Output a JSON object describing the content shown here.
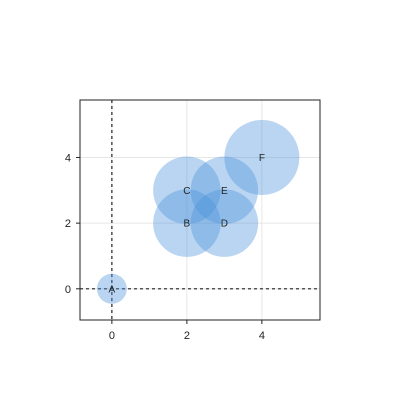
{
  "chart_data": {
    "type": "scatter",
    "title": "",
    "xlabel": "",
    "ylabel": "",
    "xlim": [
      -0.85,
      5.55
    ],
    "ylim": [
      -0.95,
      5.75
    ],
    "xticks": [
      0,
      2,
      4
    ],
    "yticks": [
      0,
      2,
      4
    ],
    "x_tick_labels": [
      "0",
      "2",
      "4"
    ],
    "y_tick_labels": [
      "0",
      "2",
      "4"
    ],
    "grid": true,
    "reference_lines": {
      "x": 0,
      "y": 0,
      "style": "dashed"
    },
    "marker_color": "#4a90d9",
    "points": [
      {
        "label": "A",
        "x": 0,
        "y": 0,
        "size": 0.4
      },
      {
        "label": "B",
        "x": 2,
        "y": 2,
        "size": 0.9
      },
      {
        "label": "C",
        "x": 2,
        "y": 3,
        "size": 0.9
      },
      {
        "label": "D",
        "x": 3,
        "y": 2,
        "size": 0.9
      },
      {
        "label": "E",
        "x": 3,
        "y": 3,
        "size": 0.9
      },
      {
        "label": "F",
        "x": 4,
        "y": 4,
        "size": 1.0
      }
    ]
  }
}
